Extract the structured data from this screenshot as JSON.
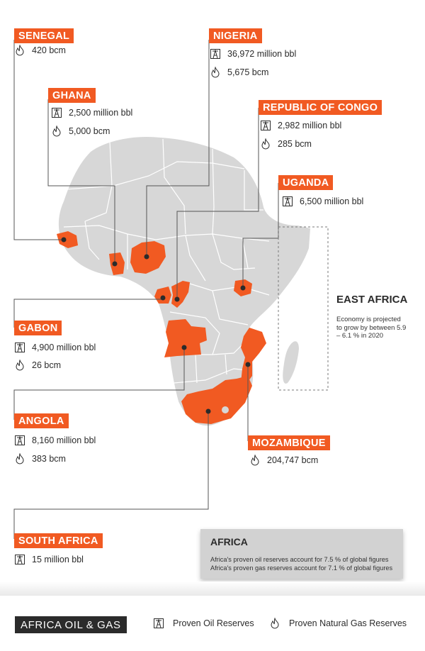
{
  "colors": {
    "accent": "#f15a22",
    "land": "#d7d7d7",
    "border": "#ffffff",
    "text": "#2b2b2b",
    "box": "#d2d2d2"
  },
  "icons": {
    "oil": "oil-derrick-icon",
    "gas": "gas-flame-icon"
  },
  "countries": {
    "senegal": {
      "name": "SENEGAL",
      "gas": "420 bcm"
    },
    "nigeria": {
      "name": "NIGERIA",
      "oil": "36,972 million bbl",
      "gas": "5,675 bcm"
    },
    "ghana": {
      "name": "GHANA",
      "oil": "2,500 million bbl",
      "gas": "5,000 bcm"
    },
    "congo": {
      "name": "REPUBLIC OF CONGO",
      "oil": "2,982 million bbl",
      "gas": "285 bcm"
    },
    "uganda": {
      "name": "UGANDA",
      "oil": "6,500 million bbl"
    },
    "gabon": {
      "name": "GABON",
      "oil": "4,900 million bbl",
      "gas": "26 bcm"
    },
    "angola": {
      "name": "ANGOLA",
      "oil": "8,160 million bbl",
      "gas": "383 bcm"
    },
    "mozambique": {
      "name": "MOZAMBIQUE",
      "gas": "204,747 bcm"
    },
    "south_africa": {
      "name": "SOUTH AFRICA",
      "oil": "15 million bbl"
    }
  },
  "east_africa": {
    "title": "EAST AFRICA",
    "text": "Economy is projected to grow by between 5.9 – 6.1 % in 2020"
  },
  "africa_box": {
    "title": "AFRICA",
    "line1": "Africa's proven oil reserves account for 7.5 % of global figures",
    "line2": "Africa's proven gas reserves account for 7.1 % of global figures"
  },
  "footer": {
    "brand": "AFRICA OIL & GAS",
    "legend_oil": "Proven Oil Reserves",
    "legend_gas": "Proven Natural Gas Reserves"
  }
}
